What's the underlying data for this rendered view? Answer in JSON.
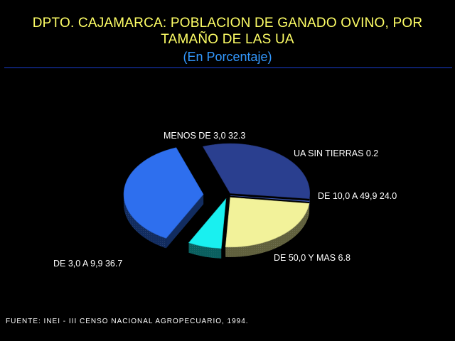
{
  "title_line1": "DPTO. CAJAMARCA: POBLACION DE GANADO OVINO, POR",
  "title_line2": "TAMAÑO DE LAS UA",
  "subtitle": "(En Porcentaje)",
  "source": "FUENTE: INEI - III CENSO NACIONAL AGROPECUARIO, 1994.",
  "colors": {
    "title": "#ffff66",
    "subtitle": "#3399ff",
    "rule": "#1a3fd0"
  },
  "chart_data": {
    "type": "pie",
    "style": "3d-exploded",
    "slices": [
      {
        "category": "MENOS DE 3,0",
        "value": 32.3,
        "label": "MENOS DE 3,0  32.3",
        "color": "#2a3f8f"
      },
      {
        "category": "UA SIN TIERRAS",
        "value": 0.2,
        "label": "UA SIN TIERRAS  0.2",
        "color": "#4a6ad8"
      },
      {
        "category": "DE 10,0 A 49,9",
        "value": 24.0,
        "label": "DE 10,0 A 49,9  24.0",
        "color": "#f2f29a"
      },
      {
        "category": "DE 50,0 Y MAS",
        "value": 6.8,
        "label": "DE 50,0 Y MAS  6.8",
        "color": "#19f0f0"
      },
      {
        "category": "DE 3,0 A 9,9",
        "value": 36.7,
        "label": "DE 3,0 A 9,9  36.7",
        "color": "#2e6fee"
      }
    ]
  }
}
